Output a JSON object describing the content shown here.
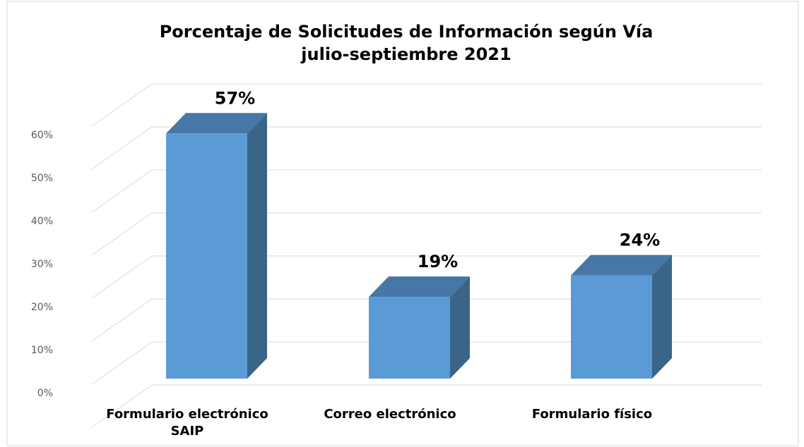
{
  "chart_data": {
    "type": "bar3d",
    "title": "Porcentaje de Solicitudes de Información según Vía",
    "subtitle": "julio-septiembre 2021",
    "categories": [
      "Formulario electrónico SAIP",
      "Correo electrónico",
      "Formulario físico"
    ],
    "values": [
      57,
      19,
      24
    ],
    "value_labels": [
      "57%",
      "19%",
      "24%"
    ],
    "color": "#5b9bd5",
    "ylim": [
      0,
      70
    ],
    "yticks": [
      {
        "value": 0,
        "label": "0%"
      },
      {
        "value": 10,
        "label": "10%"
      },
      {
        "value": 20,
        "label": "20%"
      },
      {
        "value": 30,
        "label": "30%"
      },
      {
        "value": 40,
        "label": "40%"
      },
      {
        "value": 50,
        "label": "50%"
      },
      {
        "value": 60,
        "label": "60%"
      }
    ],
    "grid": true
  }
}
